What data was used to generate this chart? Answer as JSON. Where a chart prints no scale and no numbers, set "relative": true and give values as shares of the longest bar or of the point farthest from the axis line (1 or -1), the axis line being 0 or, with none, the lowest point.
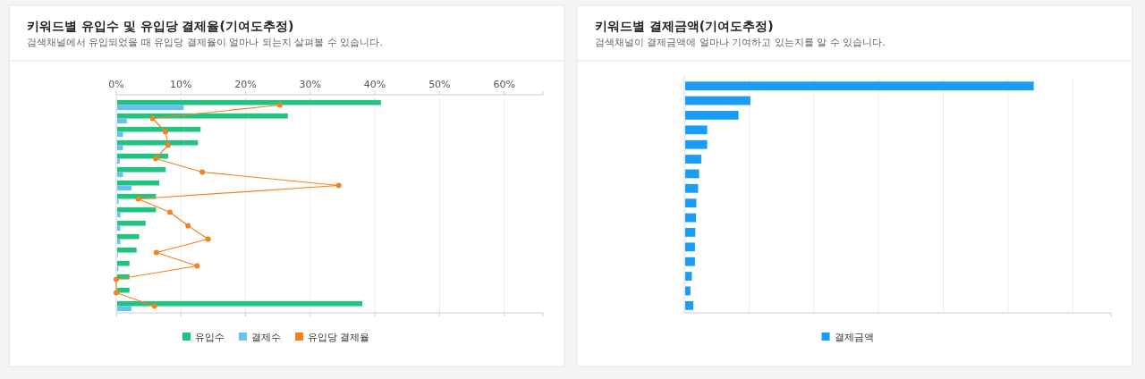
{
  "chart_data": [
    {
      "type": "bar",
      "orientation": "horizontal",
      "title": "키워드별 유입수 및 유입당 결제율(기여도추정)",
      "subtitle": "검색채널에서 유입되었을 때 유입당 결제율이 얼마나 되는지 살펴볼 수 있습니다.",
      "categories": [
        null,
        null,
        null,
        null,
        null,
        null,
        null,
        null,
        null,
        null,
        null,
        null,
        null,
        null,
        null,
        null
      ],
      "xlim": [
        0,
        66
      ],
      "xticks": [
        {
          "value": 0,
          "label": "0%"
        },
        {
          "value": 10,
          "label": "10%"
        },
        {
          "value": 20,
          "label": "20%"
        },
        {
          "value": 30,
          "label": "30%"
        },
        {
          "value": 40,
          "label": "40%"
        },
        {
          "value": 50,
          "label": "50%"
        },
        {
          "value": 60,
          "label": "60%"
        }
      ],
      "grid": "x",
      "legend": "bottom",
      "marker": "circle",
      "series": [
        {
          "name": "유입수",
          "color": "#1ec47f",
          "values": [
            40.8,
            26.4,
            12.9,
            12.5,
            7.9,
            7.5,
            6.5,
            6.0,
            6.0,
            4.4,
            3.4,
            3.0,
            1.9,
            1.9,
            1.9,
            37.9
          ]
        },
        {
          "name": "결제수",
          "color": "#66c2f5",
          "values": [
            10.3,
            1.5,
            0.9,
            0.9,
            0.4,
            0.9,
            2.2,
            0.2,
            0.5,
            0.5,
            0.5,
            0.1,
            0.2,
            0,
            0,
            2.2
          ]
        },
        {
          "name": "유입당 결제율",
          "type": "line",
          "color": "#f5821f",
          "values": [
            25.3,
            5.6,
            7.6,
            8.0,
            6.1,
            13.3,
            34.4,
            3.4,
            8.3,
            11.1,
            14.2,
            6.2,
            12.5,
            0,
            0,
            5.9
          ]
        }
      ]
    },
    {
      "type": "bar",
      "orientation": "horizontal",
      "relative": true,
      "title": "키워드별 결제금액(기여도추정)",
      "subtitle": "검색채널이 결제금액에 얼마나 기여하고 있는지를 알 수 있습니다.",
      "categories": [
        null,
        null,
        null,
        null,
        null,
        null,
        null,
        null,
        null,
        null,
        null,
        null,
        null,
        null,
        null,
        null
      ],
      "grid": "x",
      "legend": "bottom",
      "series": [
        {
          "name": "결제금액",
          "color": "#1a9ef5",
          "values": [
            1,
            0.187,
            0.153,
            0.063,
            0.063,
            0.046,
            0.04,
            0.037,
            0.032,
            0.031,
            0.029,
            0.028,
            0.028,
            0.019,
            0.015,
            0.023
          ]
        }
      ]
    }
  ]
}
